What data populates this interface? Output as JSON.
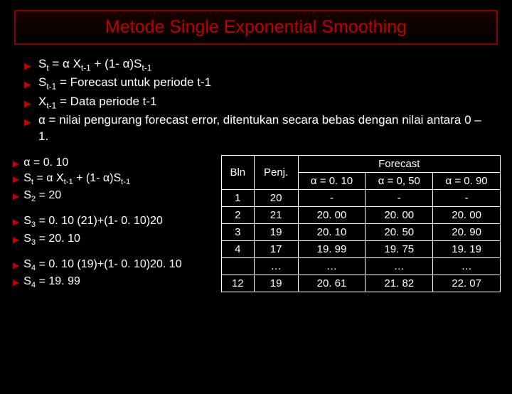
{
  "title": "Metode Single Exponential Smoothing",
  "bullets": [
    "S<sub>t</sub> = α X<sub>t-1</sub> + (1- α)S<sub>t-1</sub>",
    "S<sub>t-1</sub> = Forecast untuk periode t-1",
    "X<sub>t-1</sub> = Data periode t-1",
    "α = nilai pengurang forecast error, ditentukan secara bebas dengan nilai antara 0 – 1."
  ],
  "left_groups": [
    [
      "α = 0. 10",
      "S<sub>t</sub> = α X<sub>t-1</sub> + (1- α)S<sub>t-1</sub>",
      "S<sub>2</sub> = 20"
    ],
    [
      "S<sub>3</sub> = 0. 10 (21)+(1- 0. 10)20",
      "S<sub>3</sub> = 20. 10"
    ],
    [
      "S<sub>4</sub> = 0. 10 (19)+(1- 0. 10)20. 10",
      "S<sub>4</sub> = 19. 99"
    ]
  ],
  "table": {
    "forecast_label": "Forecast",
    "headers": [
      "Bln",
      "Penj.",
      "α = 0. 10",
      "α = 0, 50",
      "α = 0. 90"
    ],
    "rows": [
      [
        "1",
        "20",
        "-",
        "-",
        "-"
      ],
      [
        "2",
        "21",
        "20. 00",
        "20. 00",
        "20. 00"
      ],
      [
        "3",
        "19",
        "20. 10",
        "20. 50",
        "20. 90"
      ],
      [
        "4",
        "17",
        "19. 99",
        "19. 75",
        "19. 19"
      ],
      [
        "",
        "…",
        "…",
        "…",
        "…"
      ],
      [
        "12",
        "19",
        "20. 61",
        "21. 82",
        "22. 07"
      ]
    ]
  },
  "colors": {
    "accent": "#c00000",
    "border": "#8a0000",
    "bg": "#000000",
    "text": "#ffffff"
  }
}
